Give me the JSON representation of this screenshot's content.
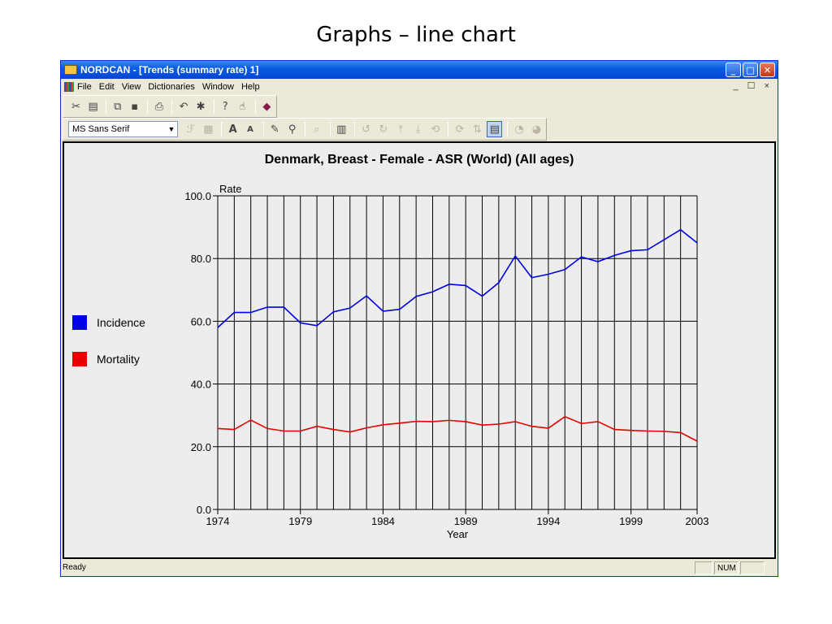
{
  "slide": {
    "title": "Graphs – line chart"
  },
  "window": {
    "title": "NORDCAN - [Trends (summary rate) 1]",
    "controls": {
      "minimize": "_",
      "maximize": "□",
      "close": "✕"
    }
  },
  "menu": {
    "items": [
      "File",
      "Edit",
      "View",
      "Dictionaries",
      "Window",
      "Help"
    ],
    "mdi_controls": "_ ☐ ×"
  },
  "toolbar": {
    "row1_icons": [
      "cut-icon",
      "chart-icon",
      "copy-icon",
      "save-icon",
      "print-icon",
      "undo-icon",
      "bug-icon",
      "help-icon",
      "pointer-icon",
      "book-icon"
    ],
    "font_select_value": "MS Sans Serif",
    "row2_icons": [
      "font-icon",
      "grid-icon",
      "font-grow-icon",
      "font-shrink-icon",
      "paint-icon",
      "format-icon",
      "zoom-icon",
      "table-icon",
      "rotate-left-icon",
      "rotate-right-icon",
      "legend-icon",
      "pie-icon"
    ]
  },
  "status": {
    "text": "Ready",
    "num": "NUM"
  },
  "colors": {
    "incidence": "#0000e6",
    "mortality": "#e60000",
    "grid": "#000000"
  },
  "chart_data": {
    "type": "line",
    "title": "Denmark, Breast - Female - ASR (World) (All ages)",
    "xlabel": "Year",
    "ylabel": "Rate",
    "x": [
      1974,
      1975,
      1976,
      1977,
      1978,
      1979,
      1980,
      1981,
      1982,
      1983,
      1984,
      1985,
      1986,
      1987,
      1988,
      1989,
      1990,
      1991,
      1992,
      1993,
      1994,
      1995,
      1996,
      1997,
      1998,
      1999,
      2000,
      2001,
      2002,
      2003
    ],
    "x_tick_labels": [
      "1974",
      "1979",
      "1984",
      "1989",
      "1994",
      "1999",
      "2003"
    ],
    "y_tick_labels": [
      "0.0",
      "20.0",
      "40.0",
      "60.0",
      "80.0",
      "100.0"
    ],
    "ylim": [
      0,
      100
    ],
    "xlim": [
      1974,
      2003
    ],
    "grid": true,
    "legend_position": "left",
    "series": [
      {
        "name": "Incidence",
        "values": [
          58.0,
          62.8,
          62.8,
          64.5,
          64.5,
          59.5,
          58.6,
          63.0,
          64.2,
          68.1,
          63.2,
          63.8,
          67.9,
          69.4,
          71.8,
          71.4,
          68.0,
          72.3,
          80.8,
          73.9,
          75.0,
          76.5,
          80.5,
          79.0,
          81.0,
          82.5,
          82.8,
          86.0,
          89.2,
          85.0
        ]
      },
      {
        "name": "Mortality",
        "values": [
          25.8,
          25.5,
          28.5,
          25.8,
          25.0,
          25.0,
          26.5,
          25.5,
          24.7,
          26.0,
          27.0,
          27.5,
          28.1,
          28.0,
          28.4,
          28.0,
          26.9,
          27.2,
          28.0,
          26.5,
          25.9,
          29.6,
          27.4,
          28.0,
          25.5,
          25.2,
          25.0,
          24.9,
          24.5,
          21.8
        ]
      }
    ]
  }
}
